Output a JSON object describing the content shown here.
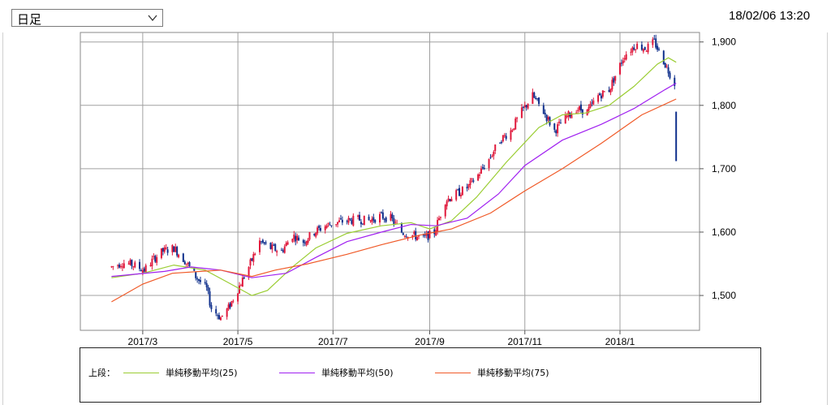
{
  "period_select": {
    "value": "日足"
  },
  "timestamp": "18/02/06 13:20",
  "legend": {
    "title": "上段：",
    "items": [
      {
        "label": "単純移動平均(25)",
        "color": "#9acd32"
      },
      {
        "label": "単純移動平均(50)",
        "color": "#a020f0"
      },
      {
        "label": "単純移動平均(75)",
        "color": "#f05a28"
      }
    ]
  },
  "colors": {
    "up": "#e0193c",
    "down": "#10308c",
    "grid": "#a0a0a0"
  },
  "chart_data": {
    "type": "candlestick",
    "ylim": [
      1445,
      1915
    ],
    "y_ticks": [
      {
        "value": 1500,
        "label": "1,500"
      },
      {
        "value": 1600,
        "label": "1,600"
      },
      {
        "value": 1700,
        "label": "1,700"
      },
      {
        "value": 1800,
        "label": "1,800"
      },
      {
        "value": 1900,
        "label": "1,900"
      }
    ],
    "x_ticks": [
      {
        "date": "2017-03-01",
        "label": "2017/3"
      },
      {
        "date": "2017-05-01",
        "label": "2017/5"
      },
      {
        "date": "2017-07-01",
        "label": "2017/7"
      },
      {
        "date": "2017-09-01",
        "label": "2017/9"
      },
      {
        "date": "2017-11-01",
        "label": "2017/11"
      },
      {
        "date": "2018-01-01",
        "label": "2018/1"
      }
    ],
    "x_range": [
      "2017-01-20",
      "2018-02-21"
    ],
    "price_keyframes": [
      [
        "2017-02-09",
        1545
      ],
      [
        "2017-02-16",
        1552
      ],
      [
        "2017-02-23",
        1548
      ],
      [
        "2017-03-02",
        1540
      ],
      [
        "2017-03-09",
        1560
      ],
      [
        "2017-03-14",
        1570
      ],
      [
        "2017-03-21",
        1575
      ],
      [
        "2017-03-28",
        1555
      ],
      [
        "2017-04-04",
        1530
      ],
      [
        "2017-04-11",
        1510
      ],
      [
        "2017-04-14",
        1480
      ],
      [
        "2017-04-20",
        1465
      ],
      [
        "2017-04-25",
        1480
      ],
      [
        "2017-05-01",
        1510
      ],
      [
        "2017-05-08",
        1545
      ],
      [
        "2017-05-15",
        1585
      ],
      [
        "2017-05-22",
        1575
      ],
      [
        "2017-05-29",
        1570
      ],
      [
        "2017-06-05",
        1595
      ],
      [
        "2017-06-12",
        1585
      ],
      [
        "2017-06-19",
        1600
      ],
      [
        "2017-06-26",
        1610
      ],
      [
        "2017-07-03",
        1615
      ],
      [
        "2017-07-10",
        1618
      ],
      [
        "2017-07-17",
        1620
      ],
      [
        "2017-07-24",
        1618
      ],
      [
        "2017-07-31",
        1625
      ],
      [
        "2017-08-07",
        1622
      ],
      [
        "2017-08-14",
        1600
      ],
      [
        "2017-08-21",
        1595
      ],
      [
        "2017-08-28",
        1590
      ],
      [
        "2017-09-04",
        1600
      ],
      [
        "2017-09-11",
        1650
      ],
      [
        "2017-09-18",
        1660
      ],
      [
        "2017-09-25",
        1670
      ],
      [
        "2017-10-02",
        1690
      ],
      [
        "2017-10-09",
        1715
      ],
      [
        "2017-10-16",
        1745
      ],
      [
        "2017-10-23",
        1760
      ],
      [
        "2017-10-30",
        1790
      ],
      [
        "2017-11-06",
        1815
      ],
      [
        "2017-11-13",
        1790
      ],
      [
        "2017-11-20",
        1760
      ],
      [
        "2017-11-27",
        1780
      ],
      [
        "2017-12-04",
        1795
      ],
      [
        "2017-12-11",
        1790
      ],
      [
        "2017-12-18",
        1815
      ],
      [
        "2017-12-25",
        1825
      ],
      [
        "2018-01-04",
        1880
      ],
      [
        "2018-01-11",
        1895
      ],
      [
        "2018-01-18",
        1890
      ],
      [
        "2018-01-23",
        1900
      ],
      [
        "2018-01-26",
        1885
      ],
      [
        "2018-01-31",
        1860
      ],
      [
        "2018-02-02",
        1850
      ],
      [
        "2018-02-05",
        1835
      ]
    ],
    "last_candle": {
      "date": "2018-02-06",
      "open": 1790,
      "high": 1790,
      "low": 1712,
      "close": 1712
    },
    "series": [
      {
        "name": "単純移動平均(25)",
        "color": "#9acd32",
        "points": [
          [
            "2017-02-09",
            1528
          ],
          [
            "2017-03-01",
            1535
          ],
          [
            "2017-03-21",
            1548
          ],
          [
            "2017-04-10",
            1540
          ],
          [
            "2017-04-25",
            1520
          ],
          [
            "2017-05-10",
            1500
          ],
          [
            "2017-05-20",
            1508
          ],
          [
            "2017-06-05",
            1545
          ],
          [
            "2017-06-20",
            1575
          ],
          [
            "2017-07-10",
            1598
          ],
          [
            "2017-08-01",
            1610
          ],
          [
            "2017-08-20",
            1615
          ],
          [
            "2017-09-01",
            1605
          ],
          [
            "2017-09-15",
            1618
          ],
          [
            "2017-10-01",
            1655
          ],
          [
            "2017-10-20",
            1710
          ],
          [
            "2017-11-10",
            1765
          ],
          [
            "2017-11-25",
            1785
          ],
          [
            "2017-12-10",
            1788
          ],
          [
            "2017-12-25",
            1800
          ],
          [
            "2018-01-10",
            1830
          ],
          [
            "2018-01-25",
            1865
          ],
          [
            "2018-02-01",
            1875
          ],
          [
            "2018-02-06",
            1868
          ]
        ]
      },
      {
        "name": "単純移動平均(50)",
        "color": "#a020f0",
        "points": [
          [
            "2017-02-09",
            1530
          ],
          [
            "2017-03-15",
            1538
          ],
          [
            "2017-04-01",
            1545
          ],
          [
            "2017-04-20",
            1540
          ],
          [
            "2017-05-10",
            1528
          ],
          [
            "2017-06-01",
            1535
          ],
          [
            "2017-06-20",
            1560
          ],
          [
            "2017-07-10",
            1585
          ],
          [
            "2017-08-01",
            1600
          ],
          [
            "2017-08-20",
            1612
          ],
          [
            "2017-09-05",
            1610
          ],
          [
            "2017-09-25",
            1622
          ],
          [
            "2017-10-15",
            1660
          ],
          [
            "2017-11-01",
            1705
          ],
          [
            "2017-11-25",
            1745
          ],
          [
            "2017-12-20",
            1770
          ],
          [
            "2018-01-10",
            1795
          ],
          [
            "2018-01-30",
            1825
          ],
          [
            "2018-02-06",
            1835
          ]
        ]
      },
      {
        "name": "単純移動平均(75)",
        "color": "#f05a28",
        "points": [
          [
            "2017-02-09",
            1490
          ],
          [
            "2017-03-01",
            1518
          ],
          [
            "2017-03-20",
            1535
          ],
          [
            "2017-04-20",
            1540
          ],
          [
            "2017-05-10",
            1530
          ],
          [
            "2017-05-25",
            1540
          ],
          [
            "2017-06-15",
            1550
          ],
          [
            "2017-07-10",
            1565
          ],
          [
            "2017-08-01",
            1580
          ],
          [
            "2017-08-25",
            1595
          ],
          [
            "2017-09-15",
            1605
          ],
          [
            "2017-10-10",
            1630
          ],
          [
            "2017-11-01",
            1665
          ],
          [
            "2017-11-25",
            1700
          ],
          [
            "2017-12-20",
            1740
          ],
          [
            "2018-01-15",
            1785
          ],
          [
            "2018-02-06",
            1810
          ]
        ]
      }
    ]
  }
}
